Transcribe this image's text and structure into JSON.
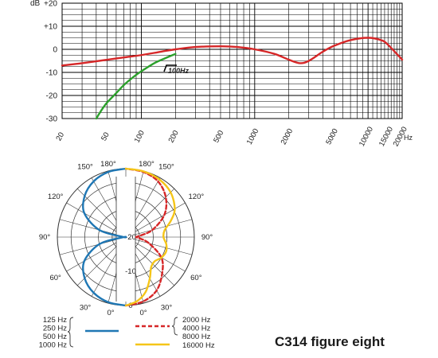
{
  "title": "C314 figure eight",
  "colors": {
    "blue": "#1f77b4",
    "red": "#d62728",
    "green": "#2ca02c",
    "yellow": "#f5c518",
    "grid": "#000000"
  },
  "chart_data": [
    {
      "type": "line",
      "xscale": "log",
      "xlim": [
        20,
        20000
      ],
      "ylim": [
        -30,
        20
      ],
      "ylabel": "dB",
      "xunit": "Hz",
      "x_ticks": [
        "20",
        "50",
        "100",
        "200",
        "500",
        "1000",
        "2000",
        "5000",
        "10000",
        "15000",
        "20000"
      ],
      "y_ticks": [
        "+20",
        "+10",
        "0",
        "-10",
        "-20",
        "-30"
      ],
      "annotation": "100Hz",
      "grid": true,
      "series": [
        {
          "color": "red",
          "x": [
            20,
            30,
            50,
            70,
            100,
            150,
            200,
            300,
            500,
            700,
            1000,
            1500,
            2000,
            2500,
            3000,
            4000,
            5000,
            7000,
            10000,
            13000,
            15000,
            20000
          ],
          "y": [
            -7,
            -6,
            -4.5,
            -3.5,
            -2.5,
            -1,
            0,
            1,
            1.3,
            1,
            0,
            -2,
            -4.5,
            -6,
            -5,
            -1,
            1.5,
            4,
            5,
            4,
            2,
            -4.5
          ]
        },
        {
          "color": "green",
          "x": [
            40,
            45,
            50,
            60,
            70,
            85,
            100,
            130,
            160,
            200
          ],
          "y": [
            -30,
            -26,
            -23,
            -19,
            -15.5,
            -12,
            -9.5,
            -6,
            -4,
            -2
          ]
        }
      ]
    },
    {
      "type": "polar",
      "rlim": [
        -20,
        0
      ],
      "r_ticks": [
        "-20",
        "-10",
        "0"
      ],
      "angle_ticks_left": [
        "180°",
        "150°",
        "120°",
        "90°",
        "60°",
        "30°",
        "0°"
      ],
      "angle_ticks_right": [
        "180°",
        "150°",
        "120°",
        "90°",
        "60°",
        "30°",
        "0°"
      ],
      "legend_left": {
        "labels": [
          "125 Hz",
          "250 Hz",
          "500 Hz",
          "1000 Hz"
        ],
        "color": "blue"
      },
      "legend_right": [
        {
          "labels": [
            "2000 Hz",
            "4000 Hz",
            "8000 Hz"
          ],
          "color": "red",
          "style": "dashed"
        },
        {
          "labels": [
            "16000 Hz"
          ],
          "color": "yellow",
          "style": "solid"
        }
      ],
      "series": [
        {
          "name": "125–1000 Hz",
          "color": "blue",
          "side": "left",
          "angle": [
            0,
            15,
            30,
            45,
            60,
            75,
            85,
            90,
            95,
            105,
            120,
            135,
            150,
            165,
            180
          ],
          "db": [
            0,
            -0.3,
            -1.2,
            -3,
            -6,
            -12,
            -19,
            -20,
            -19,
            -12,
            -6,
            -3,
            -1.2,
            -0.3,
            0
          ]
        },
        {
          "name": "2000–8000 Hz",
          "color": "red",
          "style": "dashed",
          "side": "right",
          "angle": [
            0,
            15,
            30,
            45,
            60,
            75,
            85,
            90,
            95,
            105,
            120,
            135,
            150,
            165,
            180
          ],
          "db": [
            0,
            -0.5,
            -2,
            -5,
            -8,
            -13,
            -16,
            -17,
            -16,
            -12,
            -7,
            -3.5,
            -1.2,
            -0.3,
            0
          ]
        },
        {
          "name": "16000 Hz",
          "color": "yellow",
          "side": "right",
          "angle": [
            0,
            10,
            20,
            30,
            40,
            50,
            60,
            70,
            80,
            90,
            100,
            110,
            120,
            135,
            150,
            165,
            180
          ],
          "db": [
            0,
            -1,
            -3,
            -6,
            -8.5,
            -9,
            -8,
            -7.5,
            -8,
            -9,
            -8.5,
            -6,
            -3.5,
            -1.5,
            -0.5,
            -0.1,
            0
          ]
        }
      ]
    }
  ]
}
